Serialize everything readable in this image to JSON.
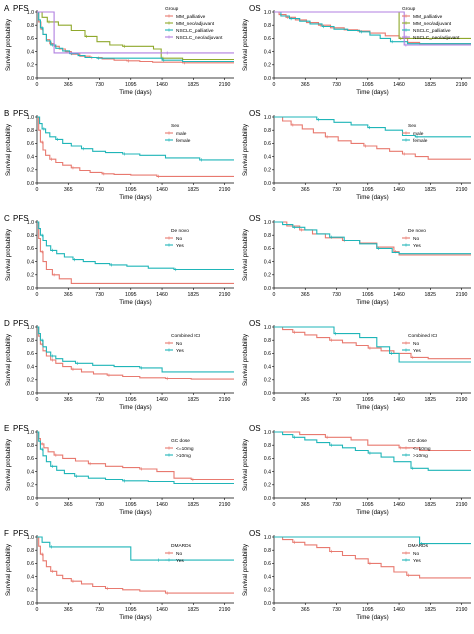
{
  "colors": {
    "red": "#e8796f",
    "teal": "#1fb5b8",
    "olive": "#8fa82b",
    "violet": "#b07fe0"
  },
  "axes": {
    "xlabel": "Time (days)",
    "ylabel": "Survival probability",
    "xticks": [
      0,
      365,
      730,
      1095,
      1460,
      1825,
      2190
    ],
    "yticks": [
      "0.0",
      "0.2",
      "0.4",
      "0.6",
      "0.8",
      "1.0"
    ],
    "xlim": [
      0,
      2300
    ],
    "ylim": [
      0,
      1
    ]
  },
  "chart_data": [
    {
      "type": "line",
      "letter": "A",
      "title": "PFS",
      "legend_title": "Group",
      "series": [
        {
          "name": "MM_palliative",
          "color": "#e8796f",
          "x": [
            0,
            20,
            45,
            70,
            110,
            150,
            200,
            260,
            330,
            400,
            500,
            620,
            760,
            900,
            1050,
            1200,
            1350,
            1700,
            2300
          ],
          "y": [
            1.0,
            0.85,
            0.74,
            0.66,
            0.58,
            0.52,
            0.48,
            0.44,
            0.4,
            0.36,
            0.33,
            0.31,
            0.29,
            0.27,
            0.26,
            0.25,
            0.24,
            0.23,
            0.23
          ]
        },
        {
          "name": "MM_neo/adjuvant",
          "color": "#8fa82b",
          "x": [
            0,
            60,
            120,
            250,
            400,
            560,
            700,
            850,
            1000,
            1200,
            1360,
            1450,
            1700,
            2300
          ],
          "y": [
            1.0,
            0.92,
            0.85,
            0.8,
            0.72,
            0.63,
            0.55,
            0.5,
            0.48,
            0.48,
            0.44,
            0.3,
            0.28,
            0.28
          ]
        },
        {
          "name": "NSCLC_palliative",
          "color": "#1fb5b8",
          "x": [
            0,
            20,
            40,
            70,
            110,
            160,
            220,
            300,
            380,
            480,
            560,
            700,
            900,
            1100,
            1460,
            1700,
            2300
          ],
          "y": [
            1.0,
            0.88,
            0.76,
            0.66,
            0.56,
            0.5,
            0.45,
            0.41,
            0.37,
            0.34,
            0.31,
            0.3,
            0.3,
            0.3,
            0.27,
            0.25,
            0.25
          ]
        },
        {
          "name": "NSCLC_neo/adjuvant",
          "color": "#b07fe0",
          "x": [
            0,
            200,
            1500,
            2300
          ],
          "y": [
            1.0,
            0.38,
            0.38,
            0.38
          ]
        }
      ]
    },
    {
      "type": "line",
      "letter": "",
      "title": "OS",
      "legend_title": "Group",
      "series": [
        {
          "name": "MM_palliative",
          "color": "#e8796f",
          "x": [
            0,
            60,
            140,
            250,
            380,
            520,
            660,
            820,
            980,
            1120,
            1300,
            1460,
            1560,
            1700,
            2300
          ],
          "y": [
            1.0,
            0.96,
            0.92,
            0.88,
            0.84,
            0.8,
            0.76,
            0.73,
            0.71,
            0.68,
            0.64,
            0.6,
            0.54,
            0.52,
            0.52
          ]
        },
        {
          "name": "MM_neo/adjuvant",
          "color": "#8fa82b",
          "x": [
            0,
            1240,
            1460,
            2300
          ],
          "y": [
            1.0,
            1.0,
            0.6,
            0.6
          ]
        },
        {
          "name": "NSCLC_palliative",
          "color": "#1fb5b8",
          "x": [
            0,
            80,
            180,
            300,
            420,
            560,
            700,
            860,
            1000,
            1120,
            1240,
            1360,
            1560,
            1700,
            2300
          ],
          "y": [
            1.0,
            0.94,
            0.9,
            0.86,
            0.82,
            0.78,
            0.74,
            0.72,
            0.7,
            0.65,
            0.6,
            0.55,
            0.52,
            0.52,
            0.52
          ]
        },
        {
          "name": "NSCLC_neo/adjuvant",
          "color": "#b07fe0",
          "x": [
            0,
            1460,
            1520,
            2300
          ],
          "y": [
            1.0,
            1.0,
            0.5,
            0.5
          ]
        }
      ]
    },
    {
      "type": "line",
      "letter": "B",
      "title": "PFS",
      "legend_title": "Sex",
      "series": [
        {
          "name": "male",
          "color": "#e8796f",
          "x": [
            0,
            20,
            40,
            70,
            100,
            150,
            220,
            300,
            400,
            500,
            620,
            760,
            900,
            1095,
            1400,
            2300
          ],
          "y": [
            1.0,
            0.8,
            0.62,
            0.5,
            0.42,
            0.36,
            0.31,
            0.27,
            0.23,
            0.19,
            0.16,
            0.14,
            0.13,
            0.12,
            0.1,
            0.1
          ]
        },
        {
          "name": "female",
          "color": "#1fb5b8",
          "x": [
            0,
            30,
            60,
            100,
            150,
            220,
            300,
            400,
            520,
            650,
            800,
            1000,
            1200,
            1500,
            1900,
            2300
          ],
          "y": [
            1.0,
            0.9,
            0.82,
            0.76,
            0.7,
            0.66,
            0.6,
            0.56,
            0.52,
            0.48,
            0.46,
            0.44,
            0.42,
            0.38,
            0.35,
            0.35
          ]
        }
      ]
    },
    {
      "type": "line",
      "letter": "",
      "title": "OS",
      "legend_title": "Sex",
      "series": [
        {
          "name": "male",
          "color": "#e8796f",
          "x": [
            0,
            100,
            200,
            330,
            460,
            600,
            750,
            900,
            1050,
            1200,
            1350,
            1500,
            1650,
            1800,
            2300
          ],
          "y": [
            1.0,
            0.94,
            0.88,
            0.82,
            0.76,
            0.7,
            0.64,
            0.6,
            0.56,
            0.52,
            0.48,
            0.44,
            0.4,
            0.36,
            0.36
          ]
        },
        {
          "name": "female",
          "color": "#1fb5b8",
          "x": [
            0,
            300,
            500,
            700,
            900,
            1095,
            1300,
            1500,
            1650,
            2300
          ],
          "y": [
            1.0,
            1.0,
            0.96,
            0.92,
            0.88,
            0.84,
            0.8,
            0.72,
            0.7,
            0.7
          ]
        }
      ]
    },
    {
      "type": "line",
      "letter": "C",
      "title": "PFS",
      "legend_title": "De novo",
      "series": [
        {
          "name": "No",
          "color": "#e8796f",
          "x": [
            0,
            20,
            40,
            70,
            110,
            180,
            260,
            400,
            2300
          ],
          "y": [
            1.0,
            0.75,
            0.55,
            0.4,
            0.28,
            0.2,
            0.14,
            0.07,
            0.07
          ]
        },
        {
          "name": "Yes",
          "color": "#1fb5b8",
          "x": [
            0,
            20,
            40,
            70,
            110,
            160,
            230,
            320,
            420,
            540,
            680,
            850,
            1050,
            1300,
            1600,
            2300
          ],
          "y": [
            1.0,
            0.9,
            0.8,
            0.72,
            0.64,
            0.57,
            0.52,
            0.47,
            0.43,
            0.4,
            0.37,
            0.35,
            0.33,
            0.3,
            0.28,
            0.28
          ]
        }
      ]
    },
    {
      "type": "line",
      "letter": "",
      "title": "OS",
      "legend_title": "De novo",
      "series": [
        {
          "name": "No",
          "color": "#e8796f",
          "x": [
            0,
            150,
            300,
            450,
            600,
            800,
            1000,
            1200,
            1400,
            1460,
            2300
          ],
          "y": [
            1.0,
            0.94,
            0.88,
            0.82,
            0.76,
            0.72,
            0.68,
            0.62,
            0.55,
            0.5,
            0.5
          ]
        },
        {
          "name": "Yes",
          "color": "#1fb5b8",
          "x": [
            0,
            100,
            220,
            360,
            500,
            650,
            820,
            1000,
            1200,
            1380,
            1460,
            2300
          ],
          "y": [
            1.0,
            0.96,
            0.92,
            0.88,
            0.82,
            0.77,
            0.72,
            0.67,
            0.6,
            0.54,
            0.52,
            0.52
          ]
        }
      ]
    },
    {
      "type": "line",
      "letter": "D",
      "title": "PFS",
      "legend_title": "Combined ICI",
      "series": [
        {
          "name": "No",
          "color": "#e8796f",
          "x": [
            0,
            20,
            40,
            70,
            110,
            160,
            220,
            300,
            400,
            520,
            660,
            820,
            1000,
            1200,
            1500,
            1800,
            2300
          ],
          "y": [
            1.0,
            0.86,
            0.74,
            0.64,
            0.56,
            0.5,
            0.45,
            0.4,
            0.36,
            0.32,
            0.29,
            0.27,
            0.25,
            0.23,
            0.22,
            0.21,
            0.21
          ]
        },
        {
          "name": "Yes",
          "color": "#1fb5b8",
          "x": [
            0,
            20,
            40,
            70,
            110,
            160,
            220,
            300,
            450,
            650,
            900,
            1200,
            1460,
            2300
          ],
          "y": [
            1.0,
            0.9,
            0.8,
            0.7,
            0.62,
            0.56,
            0.52,
            0.48,
            0.45,
            0.42,
            0.4,
            0.38,
            0.32,
            0.32
          ]
        }
      ]
    },
    {
      "type": "line",
      "letter": "",
      "title": "OS",
      "legend_title": "Combined ICI",
      "series": [
        {
          "name": "No",
          "color": "#e8796f",
          "x": [
            0,
            100,
            220,
            360,
            500,
            650,
            800,
            960,
            1100,
            1250,
            1400,
            1600,
            1800,
            2300
          ],
          "y": [
            1.0,
            0.96,
            0.92,
            0.88,
            0.84,
            0.8,
            0.76,
            0.72,
            0.68,
            0.64,
            0.6,
            0.54,
            0.52,
            0.52
          ]
        },
        {
          "name": "Yes",
          "color": "#1fb5b8",
          "x": [
            0,
            400,
            700,
            1000,
            1200,
            1350,
            1460,
            1700,
            2300
          ],
          "y": [
            1.0,
            1.0,
            0.9,
            0.84,
            0.7,
            0.6,
            0.47,
            0.47,
            0.47
          ]
        }
      ]
    },
    {
      "type": "line",
      "letter": "E",
      "title": "PFS",
      "legend_title": "GC dose",
      "series": [
        {
          "name": "<=10mg",
          "color": "#e8796f",
          "x": [
            0,
            20,
            40,
            80,
            130,
            200,
            300,
            450,
            600,
            800,
            1000,
            1200,
            1400,
            1600,
            1800,
            2300
          ],
          "y": [
            1.0,
            0.9,
            0.82,
            0.76,
            0.7,
            0.65,
            0.6,
            0.56,
            0.52,
            0.48,
            0.46,
            0.44,
            0.4,
            0.3,
            0.28,
            0.28
          ]
        },
        {
          "name": ">10mg",
          "color": "#1fb5b8",
          "x": [
            0,
            20,
            40,
            70,
            110,
            160,
            230,
            320,
            440,
            600,
            800,
            1000,
            1300,
            1600,
            2300
          ],
          "y": [
            1.0,
            0.86,
            0.74,
            0.64,
            0.55,
            0.48,
            0.42,
            0.37,
            0.33,
            0.3,
            0.28,
            0.26,
            0.25,
            0.22,
            0.22
          ]
        }
      ]
    },
    {
      "type": "line",
      "letter": "",
      "title": "OS",
      "legend_title": "GC dose",
      "series": [
        {
          "name": "<=10mg",
          "color": "#e8796f",
          "x": [
            0,
            300,
            600,
            900,
            1095,
            1460,
            1700,
            2300
          ],
          "y": [
            1.0,
            0.96,
            0.92,
            0.88,
            0.8,
            0.76,
            0.72,
            0.72
          ]
        },
        {
          "name": ">10mg",
          "color": "#1fb5b8",
          "x": [
            0,
            100,
            220,
            360,
            500,
            650,
            800,
            950,
            1100,
            1250,
            1400,
            1600,
            1800,
            2300
          ],
          "y": [
            1.0,
            0.96,
            0.92,
            0.88,
            0.84,
            0.8,
            0.76,
            0.72,
            0.68,
            0.62,
            0.55,
            0.45,
            0.42,
            0.42
          ]
        }
      ]
    },
    {
      "type": "line",
      "letter": "F",
      "title": "PFS",
      "legend_title": "DMARDs",
      "series": [
        {
          "name": "No",
          "color": "#e8796f",
          "x": [
            0,
            20,
            40,
            70,
            110,
            160,
            230,
            300,
            400,
            520,
            650,
            800,
            1000,
            1200,
            1500,
            2300
          ],
          "y": [
            1.0,
            0.86,
            0.74,
            0.64,
            0.55,
            0.48,
            0.42,
            0.37,
            0.33,
            0.29,
            0.25,
            0.22,
            0.2,
            0.18,
            0.15,
            0.15
          ]
        },
        {
          "name": "Yes",
          "color": "#1fb5b8",
          "x": [
            0,
            60,
            150,
            1000,
            1095,
            1400,
            1700,
            2300
          ],
          "y": [
            1.0,
            0.92,
            0.85,
            0.85,
            0.65,
            0.65,
            0.65,
            0.65
          ]
        }
      ]
    },
    {
      "type": "line",
      "letter": "",
      "title": "OS",
      "legend_title": "DMARDs",
      "series": [
        {
          "name": "No",
          "color": "#e8796f",
          "x": [
            0,
            100,
            220,
            360,
            500,
            650,
            800,
            950,
            1100,
            1250,
            1400,
            1550,
            1700,
            2300
          ],
          "y": [
            1.0,
            0.96,
            0.92,
            0.88,
            0.84,
            0.78,
            0.72,
            0.67,
            0.6,
            0.55,
            0.47,
            0.42,
            0.38,
            0.38
          ]
        },
        {
          "name": "Yes",
          "color": "#1fb5b8",
          "x": [
            0,
            1500,
            1700,
            2300
          ],
          "y": [
            1.0,
            1.0,
            0.9,
            0.9
          ]
        }
      ]
    }
  ]
}
